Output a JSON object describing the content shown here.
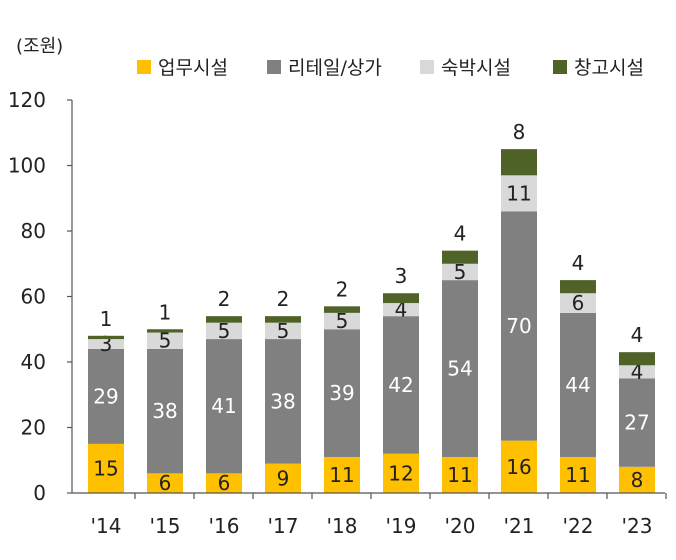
{
  "chart_data": {
    "type": "bar",
    "stacked": true,
    "unit_label": "(조원)",
    "title": "",
    "xlabel": "",
    "ylabel": "",
    "categories": [
      "'14",
      "'15",
      "'16",
      "'17",
      "'18",
      "'19",
      "'20",
      "'21",
      "'22",
      "'23"
    ],
    "ylim": [
      0,
      120
    ],
    "yticks": [
      0,
      20,
      40,
      60,
      80,
      100,
      120
    ],
    "legend_position": "top",
    "series": [
      {
        "name": "업무시설",
        "color": "#FFC000",
        "label_color": "#222222",
        "values": [
          15,
          6,
          6,
          9,
          11,
          12,
          11,
          16,
          11,
          8
        ]
      },
      {
        "name": "리테일/상가",
        "color": "#808080",
        "label_color": "#ffffff",
        "values": [
          29,
          38,
          41,
          38,
          39,
          42,
          54,
          70,
          44,
          27
        ]
      },
      {
        "name": "숙박시설",
        "color": "#D9D9D9",
        "label_color": "#222222",
        "values": [
          3,
          5,
          5,
          5,
          5,
          4,
          5,
          11,
          6,
          4
        ]
      },
      {
        "name": "창고시설",
        "color": "#4F6228",
        "label_color": "#222222",
        "values": [
          1,
          1,
          2,
          2,
          2,
          3,
          4,
          8,
          4,
          4
        ]
      }
    ]
  }
}
